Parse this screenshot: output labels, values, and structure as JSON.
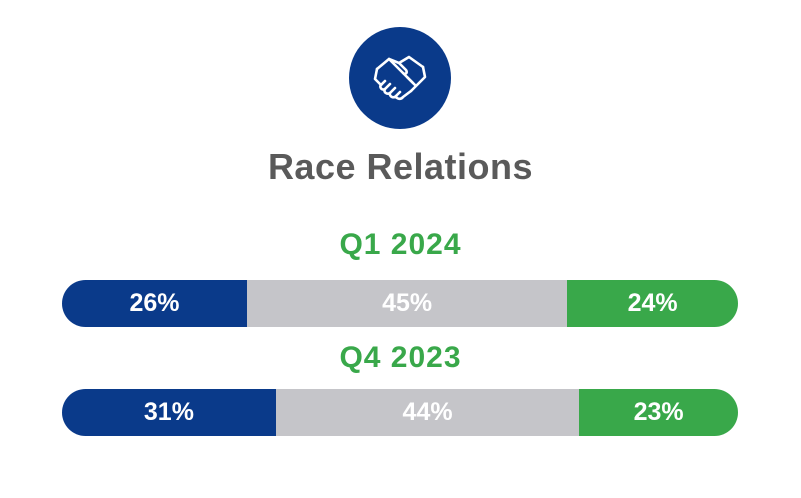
{
  "header": {
    "icon": "handshake-icon",
    "title": "Race Relations"
  },
  "colors": {
    "icon_bg": "#0a3a8a",
    "segment_1": "#0a3a8a",
    "segment_2": "#c5c5c9",
    "segment_3": "#39a84a",
    "period_label": "#39a84a",
    "title": "#5a5a5a"
  },
  "chart_data": {
    "type": "bar",
    "orientation": "horizontal-stacked",
    "title": "Race Relations",
    "categories": [
      "Q1 2024",
      "Q4 2023"
    ],
    "series": [
      {
        "values": [
          26,
          31
        ],
        "labels": [
          "26%",
          "31%"
        ],
        "color": "#0a3a8a"
      },
      {
        "values": [
          45,
          44
        ],
        "labels": [
          "45%",
          "44%"
        ],
        "color": "#c5c5c9"
      },
      {
        "values": [
          24,
          23
        ],
        "labels": [
          "24%",
          "23%"
        ],
        "color": "#39a84a"
      }
    ]
  }
}
